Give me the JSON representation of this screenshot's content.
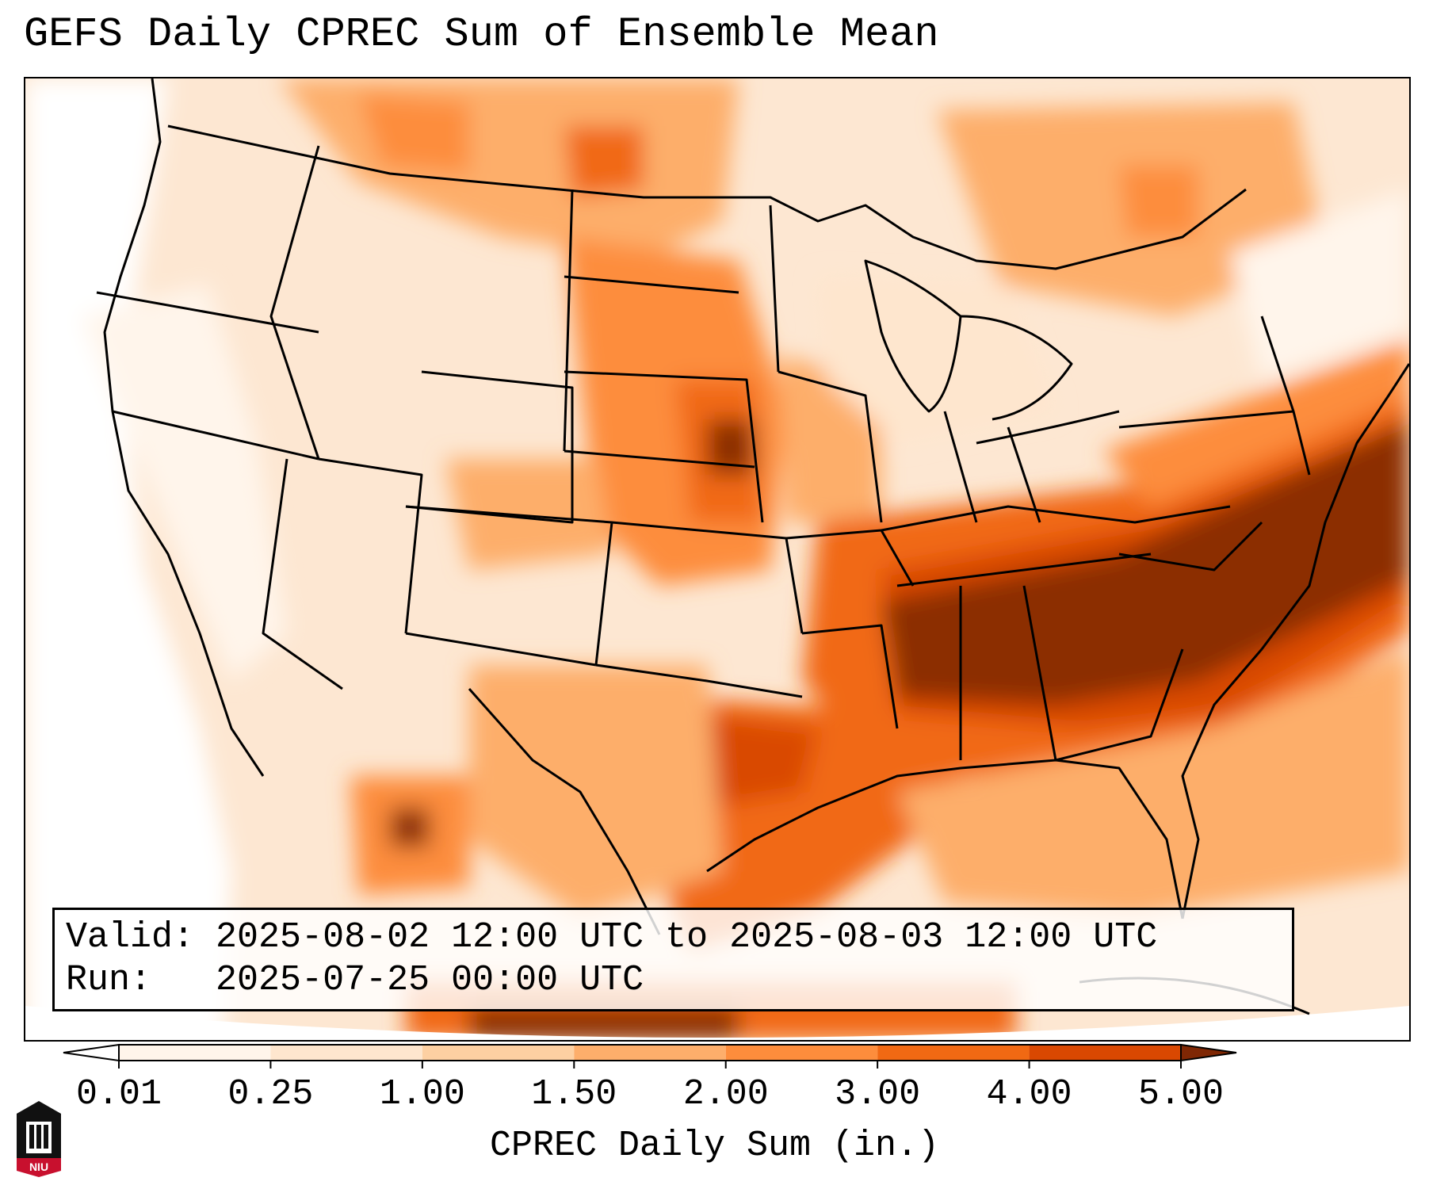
{
  "title": "GEFS Daily CPREC Sum of Ensemble Mean",
  "info": {
    "valid_label": "Valid:",
    "valid_text": "2025-08-02 12:00 UTC to 2025-08-03 12:00 UTC",
    "run_label": "Run:",
    "run_text": "2025-07-25 00:00 UTC"
  },
  "colorbar": {
    "label": "CPREC Daily Sum (in.)",
    "ticks": [
      "0.01",
      "0.25",
      "1.00",
      "1.50",
      "2.00",
      "3.00",
      "4.00",
      "5.00"
    ],
    "colors": [
      "#fff5eb",
      "#fee6ce",
      "#fdd0a2",
      "#fdae6b",
      "#fd8d3c",
      "#f16913",
      "#d94801",
      "#8c2d04"
    ],
    "under_color": "#ffffff",
    "over_color": "#7f2704"
  },
  "map": {
    "projection": "Lambert Conformal (CONUS)",
    "features": [
      "coastlines",
      "country borders",
      "state borders"
    ],
    "heavy_precip_region": "Southeast US / Gulf Coast / western Atlantic"
  },
  "logo": {
    "text": "NIU",
    "brand_color": "#c8102e"
  }
}
